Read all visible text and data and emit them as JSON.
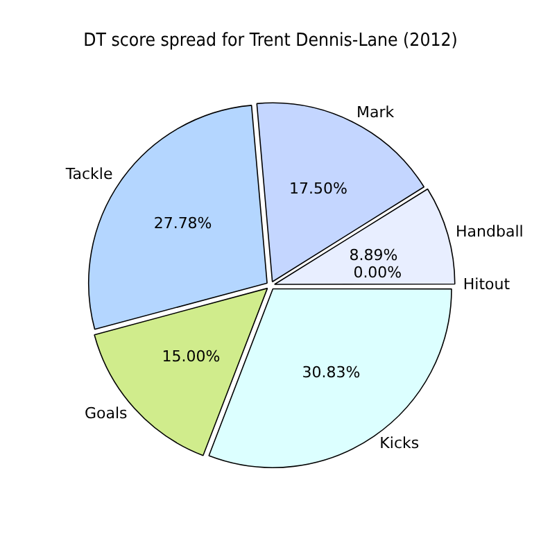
{
  "chart_data": {
    "type": "pie",
    "title": "DT score spread for Trent Dennis-Lane (2012)",
    "categories": [
      "Handball",
      "Mark",
      "Tackle",
      "Goals",
      "Kicks",
      "Hitout"
    ],
    "values": [
      8.89,
      17.5,
      27.78,
      15.0,
      30.83,
      0.0
    ],
    "value_labels": [
      "8.89%",
      "17.50%",
      "27.78%",
      "15.00%",
      "30.83%",
      "0.00%"
    ],
    "colors": [
      "#e8eeff",
      "#c4d6ff",
      "#b4d6ff",
      "#d0ec8c",
      "#dcffff",
      "#e8eeff"
    ],
    "legend": false
  }
}
